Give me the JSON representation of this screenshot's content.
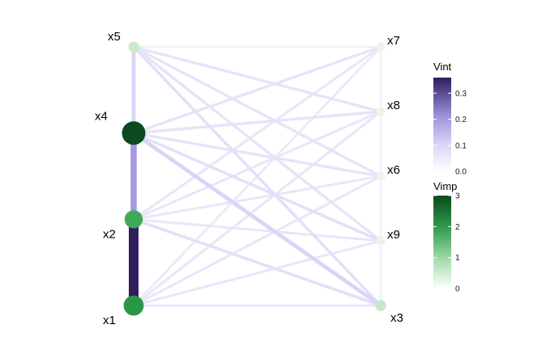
{
  "chart_data": {
    "type": "network",
    "left_nodes": [
      "x5",
      "x4",
      "x2",
      "x1"
    ],
    "right_nodes": [
      "x7",
      "x8",
      "x6",
      "x9",
      "x3"
    ],
    "nodes": [
      {
        "id": "x5",
        "vimp": 0.35
      },
      {
        "id": "x4",
        "vimp": 3.0
      },
      {
        "id": "x2",
        "vimp": 1.9
      },
      {
        "id": "x1",
        "vimp": 2.3
      },
      {
        "id": "x7",
        "vimp": 0.0
      },
      {
        "id": "x8",
        "vimp": 0.0
      },
      {
        "id": "x6",
        "vimp": 0.0
      },
      {
        "id": "x9",
        "vimp": 0.0
      },
      {
        "id": "x3",
        "vimp": 0.4
      }
    ],
    "edges": [
      {
        "from": "x1",
        "to": "x2",
        "vint": 0.36
      },
      {
        "from": "x2",
        "to": "x4",
        "vint": 0.2
      },
      {
        "from": "x4",
        "to": "x5",
        "vint": 0.1
      },
      {
        "from": "x4",
        "to": "x3",
        "vint": 0.1
      },
      {
        "from": "x5",
        "to": "x7",
        "vint": 0.01
      },
      {
        "from": "x5",
        "to": "x8",
        "vint": 0.05
      },
      {
        "from": "x5",
        "to": "x6",
        "vint": 0.05
      },
      {
        "from": "x5",
        "to": "x9",
        "vint": 0.05
      },
      {
        "from": "x5",
        "to": "x3",
        "vint": 0.06
      },
      {
        "from": "x4",
        "to": "x7",
        "vint": 0.05
      },
      {
        "from": "x4",
        "to": "x8",
        "vint": 0.05
      },
      {
        "from": "x4",
        "to": "x6",
        "vint": 0.05
      },
      {
        "from": "x4",
        "to": "x9",
        "vint": 0.06
      },
      {
        "from": "x2",
        "to": "x7",
        "vint": 0.04
      },
      {
        "from": "x2",
        "to": "x8",
        "vint": 0.04
      },
      {
        "from": "x2",
        "to": "x6",
        "vint": 0.04
      },
      {
        "from": "x2",
        "to": "x9",
        "vint": 0.04
      },
      {
        "from": "x2",
        "to": "x3",
        "vint": 0.06
      },
      {
        "from": "x1",
        "to": "x7",
        "vint": 0.03
      },
      {
        "from": "x1",
        "to": "x8",
        "vint": 0.04
      },
      {
        "from": "x1",
        "to": "x6",
        "vint": 0.04
      },
      {
        "from": "x1",
        "to": "x9",
        "vint": 0.04
      },
      {
        "from": "x1",
        "to": "x3",
        "vint": 0.04
      },
      {
        "from": "x7",
        "to": "x8",
        "vint": 0.01
      },
      {
        "from": "x8",
        "to": "x6",
        "vint": 0.01
      },
      {
        "from": "x6",
        "to": "x9",
        "vint": 0.01
      },
      {
        "from": "x9",
        "to": "x3",
        "vint": 0.01
      }
    ],
    "legends": [
      {
        "title": "Vint",
        "range": [
          0,
          0.36
        ],
        "ticks": [
          "0.0",
          "0.1",
          "0.2",
          "0.3"
        ],
        "tick_values": [
          0,
          0.1,
          0.2,
          0.3
        ],
        "color_low": "#ffffff",
        "color_high": "#2d1e5e"
      },
      {
        "title": "Vimp",
        "range": [
          0,
          3
        ],
        "ticks": [
          "0",
          "1",
          "2",
          "3"
        ],
        "tick_values": [
          0,
          1,
          2,
          3
        ],
        "color_low": "#ffffff",
        "color_high": "#0a4a1e"
      }
    ]
  }
}
